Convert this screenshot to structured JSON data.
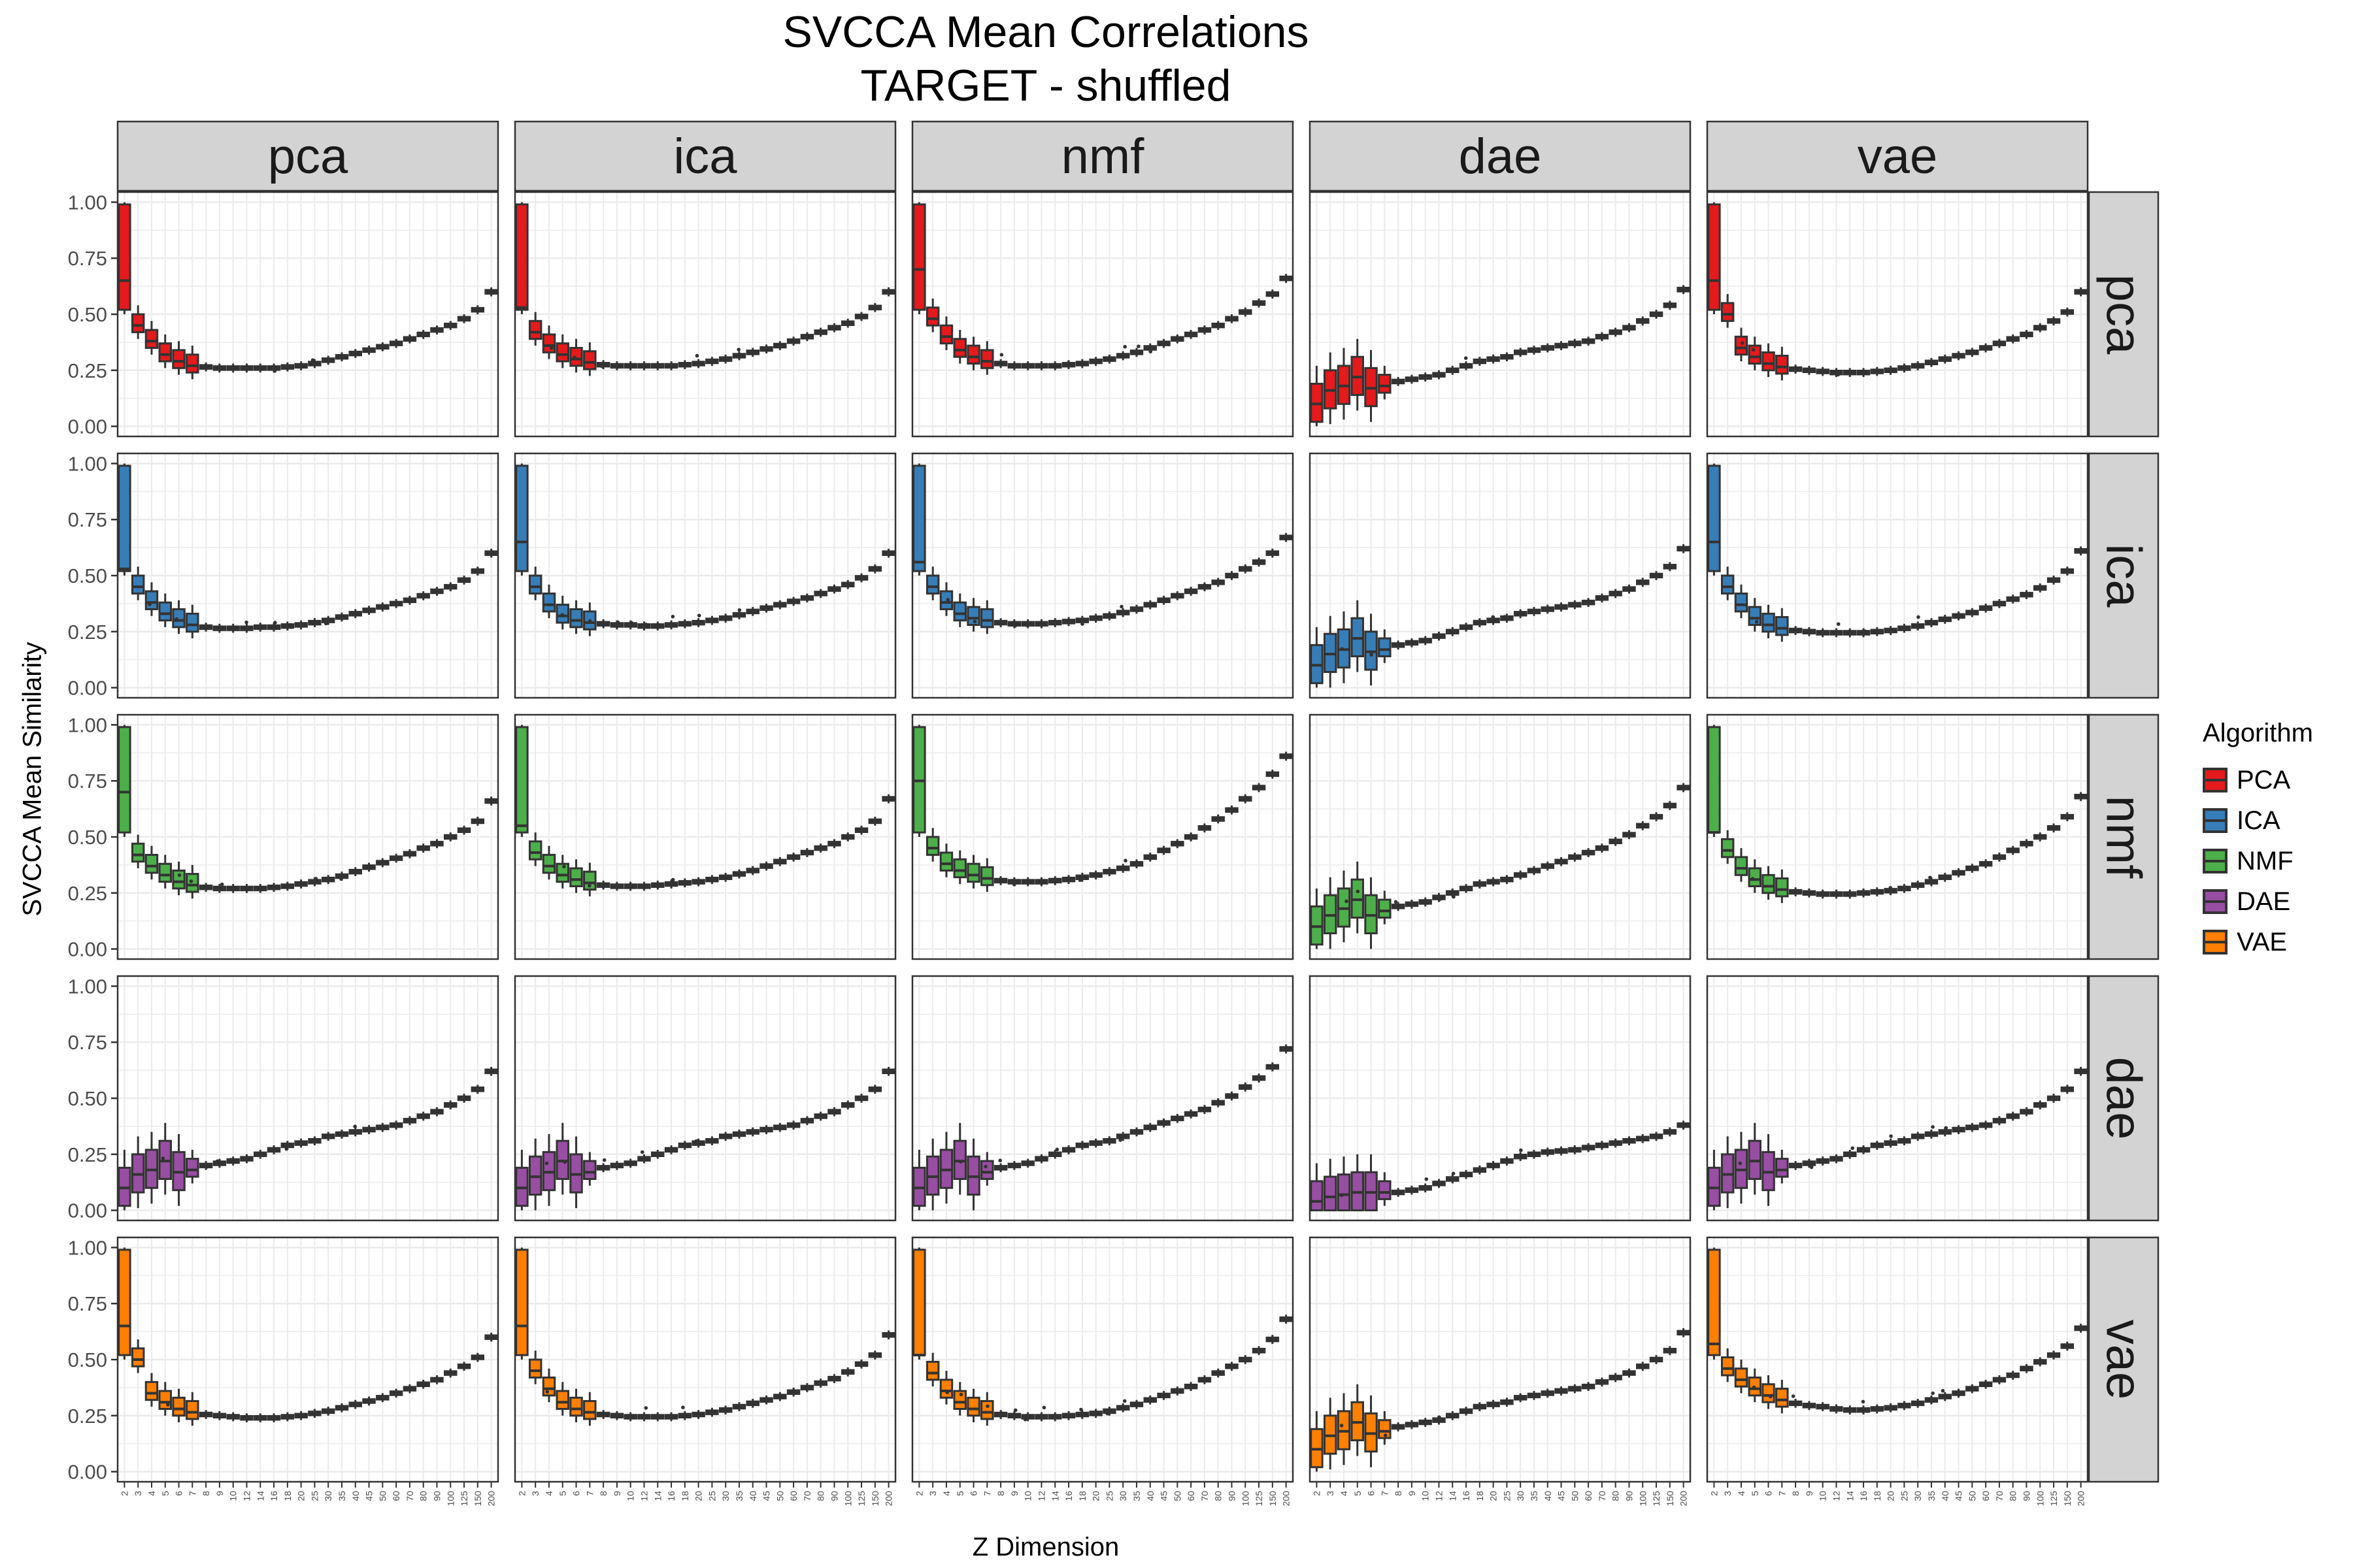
{
  "chart_data": {
    "type": "boxplot-facet-grid",
    "title": "SVCCA Mean Correlations",
    "subtitle": "TARGET - shuffled",
    "xlabel": "Z Dimension",
    "ylabel": "SVCCA Mean Similarity",
    "ylim": [
      0,
      1
    ],
    "y_ticks": [
      "0.00",
      "0.25",
      "0.50",
      "0.75",
      "1.00"
    ],
    "x_categories": [
      "2",
      "3",
      "4",
      "5",
      "6",
      "7",
      "8",
      "9",
      "10",
      "12",
      "14",
      "16",
      "18",
      "20",
      "25",
      "30",
      "35",
      "40",
      "45",
      "50",
      "60",
      "70",
      "80",
      "90",
      "100",
      "125",
      "150",
      "200"
    ],
    "col_facets": [
      "pca",
      "ica",
      "nmf",
      "dae",
      "vae"
    ],
    "row_facets": [
      "pca",
      "ica",
      "nmf",
      "dae",
      "vae"
    ],
    "legend": {
      "title": "Algorithm",
      "position": "right",
      "items": [
        {
          "label": "PCA",
          "color": "#e41a1c"
        },
        {
          "label": "ICA",
          "color": "#377eb8"
        },
        {
          "label": "NMF",
          "color": "#4daf4a"
        },
        {
          "label": "DAE",
          "color": "#984ea3"
        },
        {
          "label": "VAE",
          "color": "#ff7f00"
        }
      ]
    },
    "shapes": {
      "pca-pca": [
        0.65,
        0.45,
        0.38,
        0.32,
        0.29,
        0.27,
        0.265,
        0.26,
        0.26,
        0.26,
        0.26,
        0.26,
        0.265,
        0.27,
        0.28,
        0.295,
        0.31,
        0.325,
        0.34,
        0.355,
        0.37,
        0.39,
        0.41,
        0.43,
        0.45,
        0.48,
        0.52,
        0.6
      ],
      "pca-ica": [
        0.53,
        0.42,
        0.36,
        0.32,
        0.3,
        0.285,
        0.275,
        0.27,
        0.27,
        0.27,
        0.27,
        0.27,
        0.275,
        0.28,
        0.29,
        0.3,
        0.315,
        0.33,
        0.345,
        0.36,
        0.38,
        0.4,
        0.42,
        0.44,
        0.46,
        0.49,
        0.53,
        0.6
      ],
      "pca-nmf": [
        0.7,
        0.48,
        0.4,
        0.34,
        0.31,
        0.29,
        0.28,
        0.27,
        0.27,
        0.27,
        0.27,
        0.275,
        0.28,
        0.29,
        0.3,
        0.315,
        0.33,
        0.35,
        0.37,
        0.39,
        0.41,
        0.43,
        0.45,
        0.48,
        0.51,
        0.55,
        0.59,
        0.66
      ],
      "pca-dae": [
        0.1,
        0.16,
        0.18,
        0.22,
        0.17,
        0.18,
        0.2,
        0.21,
        0.22,
        0.23,
        0.25,
        0.27,
        0.29,
        0.3,
        0.31,
        0.33,
        0.34,
        0.35,
        0.36,
        0.37,
        0.38,
        0.4,
        0.42,
        0.44,
        0.47,
        0.5,
        0.54,
        0.61
      ],
      "pca-vae": [
        0.65,
        0.5,
        0.35,
        0.31,
        0.28,
        0.265,
        0.255,
        0.25,
        0.245,
        0.24,
        0.24,
        0.24,
        0.245,
        0.25,
        0.26,
        0.27,
        0.285,
        0.3,
        0.315,
        0.33,
        0.35,
        0.37,
        0.39,
        0.41,
        0.44,
        0.47,
        0.51,
        0.6
      ],
      "ica-pca": [
        0.53,
        0.45,
        0.38,
        0.33,
        0.3,
        0.28,
        0.27,
        0.265,
        0.265,
        0.265,
        0.27,
        0.27,
        0.275,
        0.28,
        0.29,
        0.3,
        0.315,
        0.33,
        0.345,
        0.36,
        0.375,
        0.39,
        0.41,
        0.43,
        0.45,
        0.48,
        0.52,
        0.6
      ],
      "ica-ica": [
        0.65,
        0.45,
        0.37,
        0.32,
        0.3,
        0.29,
        0.285,
        0.28,
        0.28,
        0.275,
        0.275,
        0.28,
        0.285,
        0.29,
        0.3,
        0.31,
        0.325,
        0.34,
        0.355,
        0.37,
        0.385,
        0.4,
        0.42,
        0.44,
        0.46,
        0.49,
        0.53,
        0.6
      ],
      "ica-nmf": [
        0.56,
        0.45,
        0.38,
        0.33,
        0.31,
        0.3,
        0.29,
        0.285,
        0.285,
        0.285,
        0.29,
        0.295,
        0.3,
        0.31,
        0.32,
        0.335,
        0.35,
        0.37,
        0.39,
        0.41,
        0.43,
        0.45,
        0.47,
        0.5,
        0.53,
        0.56,
        0.6,
        0.67
      ],
      "ica-dae": [
        0.1,
        0.15,
        0.17,
        0.22,
        0.16,
        0.17,
        0.19,
        0.2,
        0.21,
        0.23,
        0.25,
        0.27,
        0.29,
        0.3,
        0.31,
        0.33,
        0.34,
        0.35,
        0.36,
        0.37,
        0.38,
        0.4,
        0.42,
        0.44,
        0.47,
        0.5,
        0.54,
        0.62
      ],
      "ica-vae": [
        0.65,
        0.45,
        0.37,
        0.31,
        0.28,
        0.265,
        0.255,
        0.25,
        0.245,
        0.245,
        0.245,
        0.245,
        0.25,
        0.255,
        0.265,
        0.275,
        0.29,
        0.305,
        0.32,
        0.335,
        0.355,
        0.375,
        0.395,
        0.415,
        0.445,
        0.48,
        0.52,
        0.61
      ],
      "nmf-pca": [
        0.7,
        0.42,
        0.37,
        0.33,
        0.3,
        0.285,
        0.275,
        0.27,
        0.27,
        0.27,
        0.27,
        0.275,
        0.28,
        0.29,
        0.3,
        0.31,
        0.325,
        0.345,
        0.365,
        0.385,
        0.405,
        0.425,
        0.45,
        0.47,
        0.5,
        0.53,
        0.57,
        0.66
      ],
      "nmf-ica": [
        0.55,
        0.43,
        0.37,
        0.33,
        0.31,
        0.295,
        0.285,
        0.28,
        0.28,
        0.28,
        0.285,
        0.29,
        0.295,
        0.3,
        0.31,
        0.32,
        0.335,
        0.35,
        0.37,
        0.39,
        0.41,
        0.43,
        0.45,
        0.47,
        0.5,
        0.53,
        0.57,
        0.67
      ],
      "nmf-nmf": [
        0.75,
        0.45,
        0.38,
        0.35,
        0.33,
        0.315,
        0.305,
        0.3,
        0.3,
        0.3,
        0.305,
        0.31,
        0.32,
        0.33,
        0.345,
        0.36,
        0.38,
        0.41,
        0.44,
        0.47,
        0.5,
        0.54,
        0.58,
        0.62,
        0.67,
        0.72,
        0.78,
        0.86
      ],
      "nmf-dae": [
        0.1,
        0.15,
        0.18,
        0.22,
        0.15,
        0.17,
        0.19,
        0.2,
        0.21,
        0.23,
        0.25,
        0.27,
        0.29,
        0.3,
        0.31,
        0.33,
        0.35,
        0.37,
        0.39,
        0.41,
        0.43,
        0.45,
        0.48,
        0.51,
        0.55,
        0.59,
        0.64,
        0.72
      ],
      "nmf-vae": [
        0.52,
        0.44,
        0.36,
        0.31,
        0.28,
        0.265,
        0.255,
        0.25,
        0.245,
        0.245,
        0.245,
        0.25,
        0.255,
        0.26,
        0.27,
        0.285,
        0.3,
        0.32,
        0.34,
        0.36,
        0.38,
        0.41,
        0.44,
        0.47,
        0.5,
        0.54,
        0.59,
        0.68
      ],
      "dae-pca": [
        0.1,
        0.16,
        0.18,
        0.22,
        0.17,
        0.18,
        0.2,
        0.21,
        0.22,
        0.23,
        0.25,
        0.27,
        0.29,
        0.3,
        0.31,
        0.33,
        0.34,
        0.35,
        0.36,
        0.37,
        0.38,
        0.4,
        0.42,
        0.44,
        0.47,
        0.5,
        0.54,
        0.62
      ],
      "dae-ica": [
        0.1,
        0.15,
        0.17,
        0.22,
        0.16,
        0.17,
        0.19,
        0.2,
        0.21,
        0.23,
        0.25,
        0.27,
        0.29,
        0.3,
        0.31,
        0.33,
        0.34,
        0.35,
        0.36,
        0.37,
        0.38,
        0.4,
        0.42,
        0.44,
        0.47,
        0.5,
        0.54,
        0.62
      ],
      "dae-nmf": [
        0.1,
        0.15,
        0.18,
        0.22,
        0.15,
        0.17,
        0.19,
        0.2,
        0.21,
        0.23,
        0.25,
        0.27,
        0.29,
        0.3,
        0.31,
        0.33,
        0.35,
        0.37,
        0.39,
        0.41,
        0.43,
        0.45,
        0.48,
        0.51,
        0.55,
        0.59,
        0.64,
        0.72
      ],
      "dae-dae": [
        0.04,
        0.06,
        0.07,
        0.08,
        0.08,
        0.08,
        0.08,
        0.09,
        0.1,
        0.12,
        0.14,
        0.16,
        0.18,
        0.2,
        0.22,
        0.24,
        0.25,
        0.26,
        0.265,
        0.27,
        0.28,
        0.29,
        0.3,
        0.31,
        0.32,
        0.33,
        0.35,
        0.38
      ],
      "dae-vae": [
        0.1,
        0.16,
        0.18,
        0.22,
        0.17,
        0.18,
        0.2,
        0.21,
        0.22,
        0.23,
        0.25,
        0.27,
        0.29,
        0.3,
        0.31,
        0.33,
        0.34,
        0.35,
        0.36,
        0.37,
        0.38,
        0.4,
        0.42,
        0.44,
        0.47,
        0.5,
        0.54,
        0.62
      ],
      "vae-pca": [
        0.65,
        0.5,
        0.35,
        0.31,
        0.28,
        0.265,
        0.255,
        0.25,
        0.245,
        0.24,
        0.24,
        0.24,
        0.245,
        0.25,
        0.26,
        0.27,
        0.285,
        0.3,
        0.315,
        0.33,
        0.35,
        0.37,
        0.39,
        0.41,
        0.44,
        0.47,
        0.51,
        0.6
      ],
      "vae-ica": [
        0.65,
        0.45,
        0.37,
        0.31,
        0.28,
        0.265,
        0.255,
        0.25,
        0.245,
        0.245,
        0.245,
        0.245,
        0.25,
        0.255,
        0.265,
        0.275,
        0.29,
        0.305,
        0.32,
        0.335,
        0.355,
        0.375,
        0.395,
        0.415,
        0.445,
        0.48,
        0.52,
        0.61
      ],
      "vae-nmf": [
        0.52,
        0.44,
        0.36,
        0.31,
        0.28,
        0.265,
        0.255,
        0.25,
        0.245,
        0.245,
        0.245,
        0.25,
        0.255,
        0.26,
        0.27,
        0.285,
        0.3,
        0.32,
        0.34,
        0.36,
        0.38,
        0.41,
        0.44,
        0.47,
        0.5,
        0.54,
        0.59,
        0.68
      ],
      "vae-dae": [
        0.1,
        0.16,
        0.18,
        0.22,
        0.17,
        0.18,
        0.2,
        0.21,
        0.22,
        0.23,
        0.25,
        0.27,
        0.29,
        0.3,
        0.31,
        0.33,
        0.34,
        0.35,
        0.36,
        0.37,
        0.38,
        0.4,
        0.42,
        0.44,
        0.47,
        0.5,
        0.54,
        0.62
      ],
      "vae-vae": [
        0.57,
        0.46,
        0.41,
        0.37,
        0.34,
        0.32,
        0.305,
        0.295,
        0.29,
        0.28,
        0.275,
        0.275,
        0.28,
        0.285,
        0.295,
        0.305,
        0.32,
        0.335,
        0.35,
        0.37,
        0.39,
        0.41,
        0.43,
        0.46,
        0.49,
        0.52,
        0.56,
        0.64
      ]
    }
  }
}
